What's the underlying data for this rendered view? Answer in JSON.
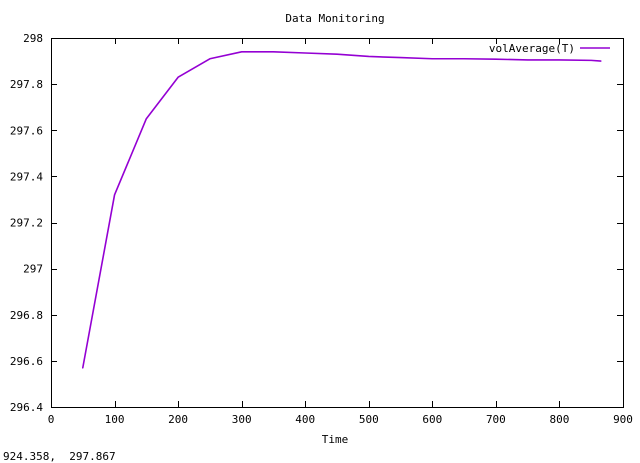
{
  "chart_data": {
    "type": "line",
    "title": "Data Monitoring",
    "xlabel": "Time",
    "ylabel": "",
    "xlim": [
      0,
      900
    ],
    "ylim": [
      296.4,
      298
    ],
    "x_ticks": [
      0,
      100,
      200,
      300,
      400,
      500,
      600,
      700,
      800,
      900
    ],
    "y_ticks": [
      296.4,
      296.6,
      296.8,
      297,
      297.2,
      297.4,
      297.6,
      297.8,
      298
    ],
    "y_tick_labels": [
      "296.4",
      "296.6",
      "296.8",
      "297",
      "297.2",
      "297.4",
      "297.6",
      "297.8",
      "298"
    ],
    "grid": false,
    "legend_position": "top-right",
    "series": [
      {
        "name": "volAverage(T)",
        "color": "#9400d3",
        "x": [
          50,
          100,
          150,
          200,
          250,
          300,
          350,
          400,
          450,
          500,
          550,
          600,
          650,
          700,
          750,
          800,
          850,
          865
        ],
        "y": [
          296.57,
          297.32,
          297.65,
          297.83,
          297.91,
          297.94,
          297.94,
          297.935,
          297.93,
          297.92,
          297.915,
          297.91,
          297.91,
          297.908,
          297.905,
          297.905,
          297.903,
          297.9
        ]
      }
    ]
  },
  "status": {
    "coordinates": "924.358,  297.867"
  }
}
